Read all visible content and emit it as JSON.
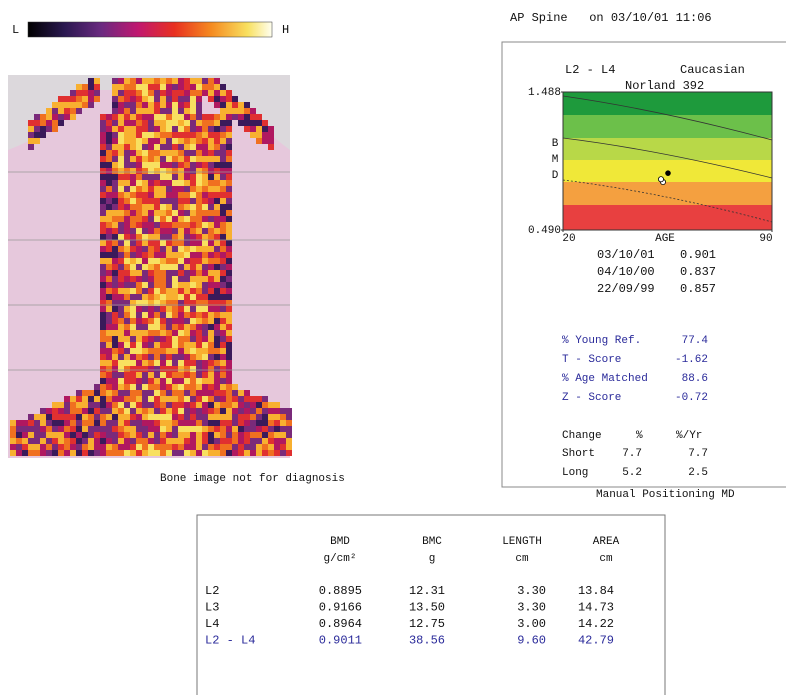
{
  "header": {
    "scale_low": "L",
    "scale_high": "H",
    "scan_title": "AP Spine   on 03/10/01 11:06"
  },
  "image_caption": "Bone image not for diagnosis",
  "chart_data": {
    "type": "scatter",
    "region": "L2 - L4",
    "ethnicity": "Caucasian",
    "device": "Norland 392",
    "ylabel": "BMD",
    "xlabel": "AGE",
    "ylim": [
      0.49,
      1.488
    ],
    "yticks": [
      {
        "value": 0.49,
        "label": "0.490"
      },
      1.488
    ],
    "xlim": [
      20,
      90
    ],
    "xticks": [
      20,
      90
    ],
    "categories": [
      "03/10/01",
      "04/10/00",
      "22/09/99"
    ],
    "values": [
      0.901,
      0.837,
      0.857
    ]
  },
  "scores": [
    {
      "label": "% Young Ref.",
      "value": "77.4"
    },
    {
      "label": "T - Score",
      "value": "-1.62"
    },
    {
      "label": "% Age Matched",
      "value": "88.6"
    },
    {
      "label": "Z - Score",
      "value": "-0.72"
    }
  ],
  "change": {
    "headers": [
      "Change",
      "%",
      "%/Yr"
    ],
    "rows": [
      [
        "Short",
        "7.7",
        "7.7"
      ],
      [
        "Long",
        "5.2",
        "2.5"
      ]
    ]
  },
  "footer_note": "Manual Positioning MD",
  "table": {
    "headers": [
      [
        "BMD",
        "g/cm²"
      ],
      [
        "BMC",
        "g"
      ],
      [
        "LENGTH",
        "cm"
      ],
      [
        "AREA",
        "cm"
      ]
    ],
    "rows": [
      [
        "L2",
        "0.8895",
        "12.31",
        "3.30",
        "13.84"
      ],
      [
        "L3",
        "0.9166",
        "13.50",
        "3.30",
        "14.73"
      ],
      [
        "L4",
        "0.8964",
        "12.75",
        "3.00",
        "14.22"
      ],
      [
        "L2 - L4",
        "0.9011",
        "38.56",
        "9.60",
        "42.79"
      ]
    ]
  }
}
